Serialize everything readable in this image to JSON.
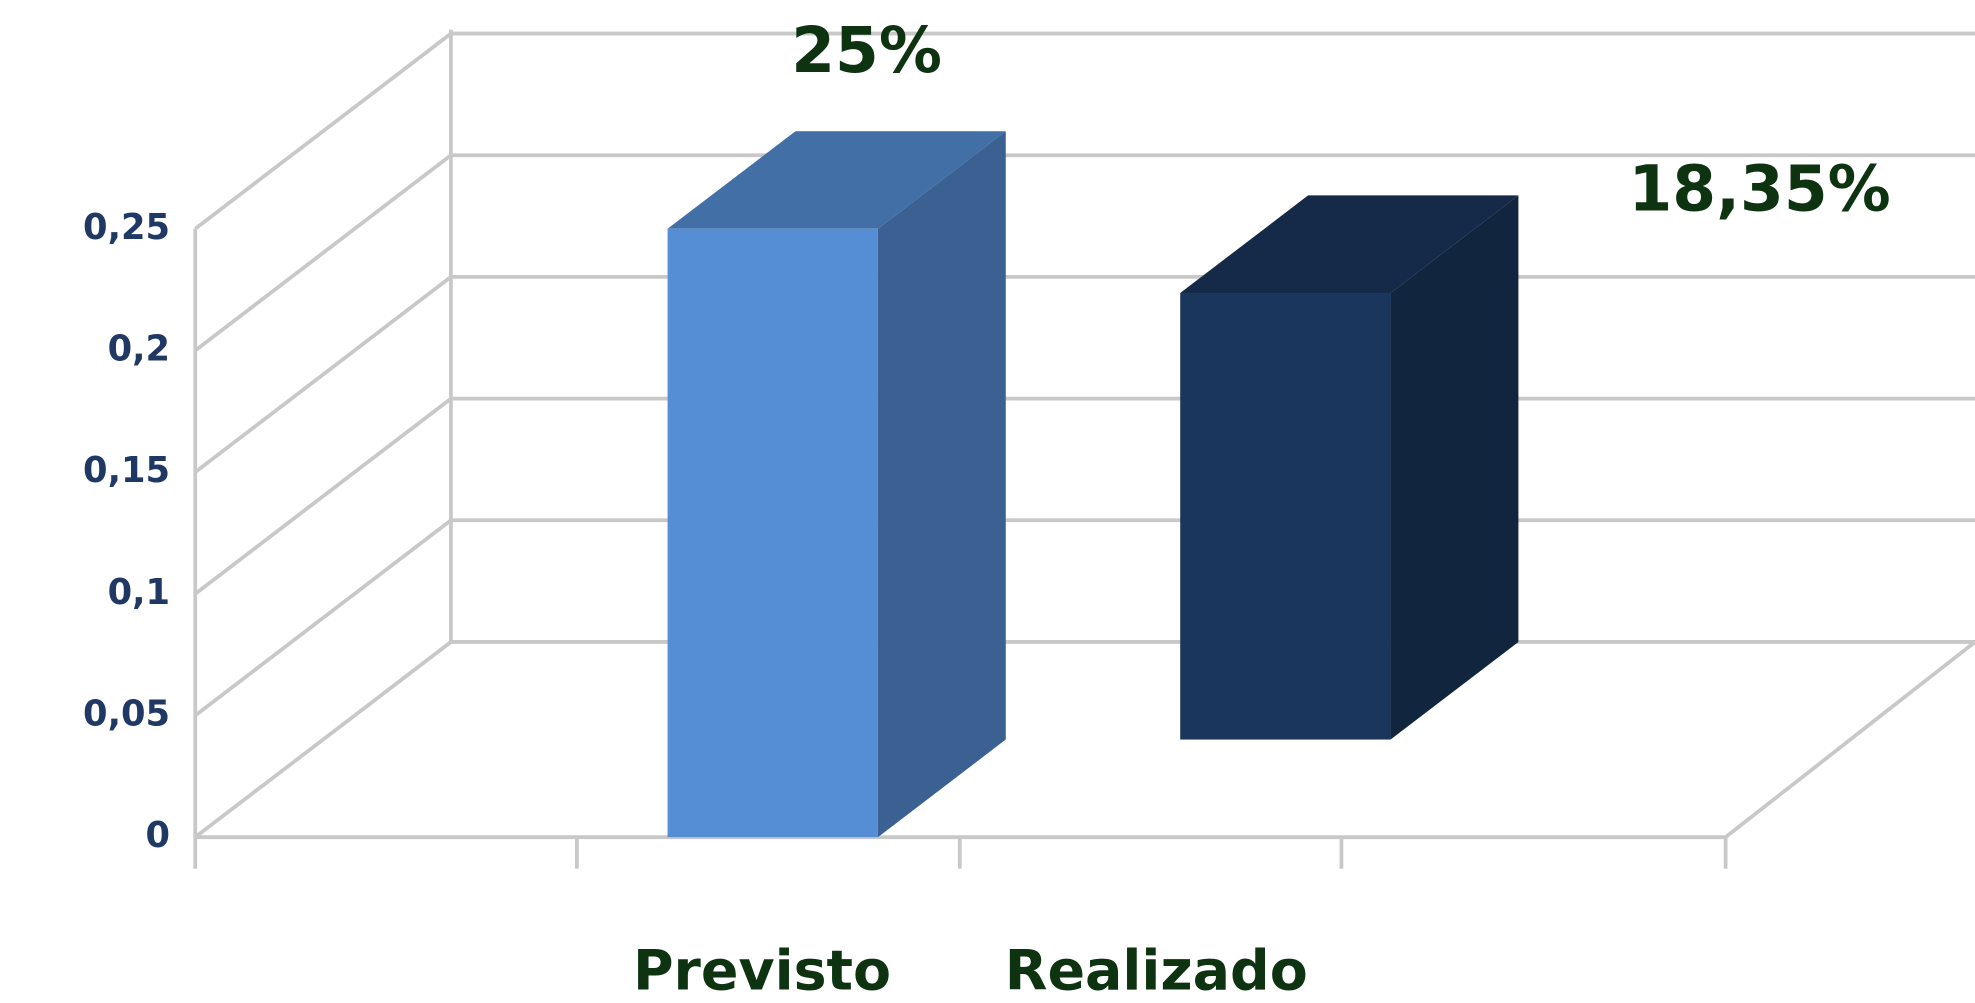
{
  "chart_data": {
    "type": "bar3d",
    "categories": [
      "Previsto",
      "Realizado"
    ],
    "values": [
      0.25,
      0.1835
    ],
    "value_labels": [
      "25%",
      "18,35%"
    ],
    "colors": [
      "#558ed5",
      "#1b365d"
    ],
    "ylim": [
      0,
      0.25
    ],
    "yticks": [
      0,
      {
        "value": 0.05,
        "label": "0,05"
      },
      {
        "value": 0.1,
        "label": "0,1"
      },
      {
        "value": 0.15,
        "label": "0,15"
      },
      {
        "value": 0.2,
        "label": "0,2"
      },
      {
        "value": 0.25,
        "label": "0,25"
      }
    ],
    "grid": true
  }
}
